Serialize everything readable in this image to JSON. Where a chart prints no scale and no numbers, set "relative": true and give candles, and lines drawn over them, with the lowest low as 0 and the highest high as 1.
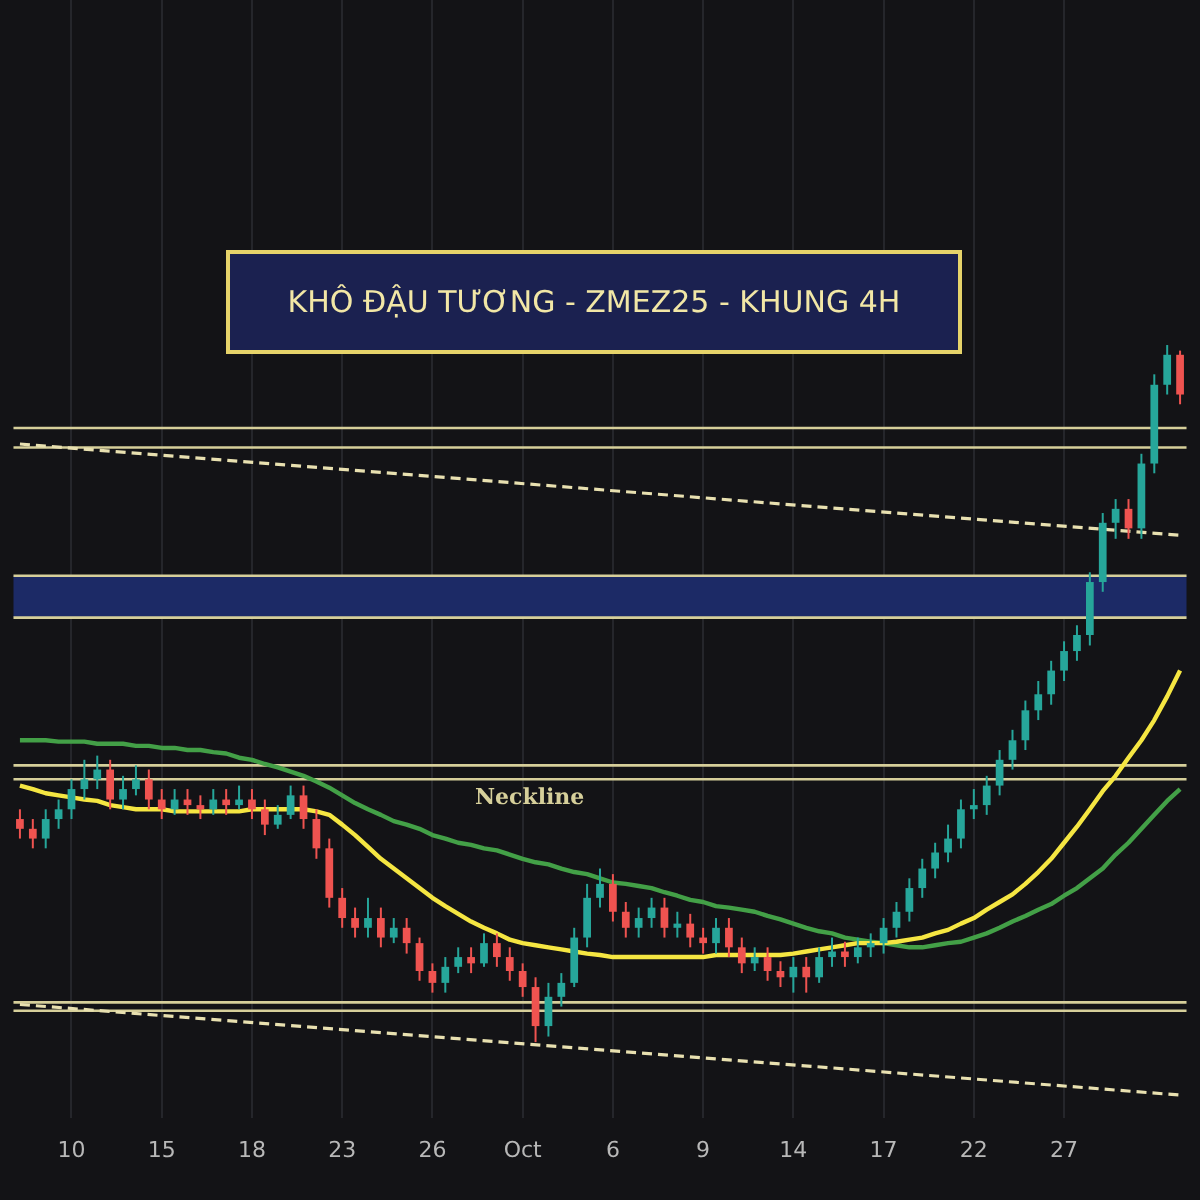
{
  "chart_data": {
    "type": "candlestick",
    "title": "KHÔ ĐẬU TƯƠNG - ZMEZ25 - KHUNG 4H",
    "relative": true,
    "legend": false,
    "grid": "x",
    "tick_labels": "x",
    "categories": [
      null,
      null,
      null,
      null,
      "10",
      null,
      null,
      null,
      null,
      null,
      null,
      "15",
      null,
      null,
      null,
      null,
      null,
      null,
      "18",
      null,
      null,
      null,
      null,
      null,
      null,
      "23",
      null,
      null,
      null,
      null,
      null,
      null,
      "26",
      null,
      null,
      null,
      null,
      null,
      null,
      "Oct",
      null,
      null,
      null,
      null,
      null,
      null,
      "6",
      null,
      null,
      null,
      null,
      null,
      null,
      "9",
      null,
      null,
      null,
      null,
      null,
      null,
      "14",
      null,
      null,
      null,
      null,
      null,
      null,
      "17",
      null,
      null,
      null,
      null,
      null,
      null,
      "22",
      null,
      null,
      null,
      null,
      null,
      null,
      "27",
      null,
      null,
      null,
      null,
      null,
      null,
      null,
      null,
      null
    ],
    "ohlc": [
      [
        0.32,
        0.334,
        0.292,
        0.306
      ],
      [
        0.306,
        0.32,
        0.278,
        0.292
      ],
      [
        0.292,
        0.334,
        0.278,
        0.32
      ],
      [
        0.32,
        0.348,
        0.306,
        0.334
      ],
      [
        0.334,
        0.377,
        0.32,
        0.363
      ],
      [
        0.363,
        0.405,
        0.348,
        0.377
      ],
      [
        0.377,
        0.411,
        0.363,
        0.391
      ],
      [
        0.391,
        0.405,
        0.334,
        0.348
      ],
      [
        0.348,
        0.382,
        0.334,
        0.363
      ],
      [
        0.363,
        0.397,
        0.354,
        0.377
      ],
      [
        0.377,
        0.391,
        0.334,
        0.348
      ],
      [
        0.348,
        0.363,
        0.32,
        0.334
      ],
      [
        0.334,
        0.363,
        0.326,
        0.348
      ],
      [
        0.348,
        0.363,
        0.326,
        0.34
      ],
      [
        0.34,
        0.354,
        0.32,
        0.334
      ],
      [
        0.334,
        0.363,
        0.326,
        0.348
      ],
      [
        0.348,
        0.363,
        0.326,
        0.34
      ],
      [
        0.34,
        0.368,
        0.334,
        0.348
      ],
      [
        0.348,
        0.363,
        0.32,
        0.334
      ],
      [
        0.334,
        0.348,
        0.297,
        0.312
      ],
      [
        0.312,
        0.34,
        0.306,
        0.326
      ],
      [
        0.326,
        0.368,
        0.32,
        0.354
      ],
      [
        0.354,
        0.368,
        0.306,
        0.32
      ],
      [
        0.32,
        0.334,
        0.263,
        0.278
      ],
      [
        0.278,
        0.292,
        0.193,
        0.207
      ],
      [
        0.207,
        0.221,
        0.164,
        0.178
      ],
      [
        0.178,
        0.193,
        0.15,
        0.164
      ],
      [
        0.164,
        0.207,
        0.15,
        0.178
      ],
      [
        0.178,
        0.193,
        0.136,
        0.15
      ],
      [
        0.15,
        0.178,
        0.142,
        0.164
      ],
      [
        0.164,
        0.178,
        0.127,
        0.142
      ],
      [
        0.142,
        0.15,
        0.088,
        0.102
      ],
      [
        0.102,
        0.113,
        0.071,
        0.085
      ],
      [
        0.085,
        0.122,
        0.071,
        0.108
      ],
      [
        0.108,
        0.136,
        0.099,
        0.122
      ],
      [
        0.122,
        0.136,
        0.099,
        0.113
      ],
      [
        0.113,
        0.156,
        0.108,
        0.142
      ],
      [
        0.142,
        0.156,
        0.108,
        0.122
      ],
      [
        0.122,
        0.136,
        0.088,
        0.102
      ],
      [
        0.102,
        0.113,
        0.065,
        0.079
      ],
      [
        0.079,
        0.093,
        0,
        0.023
      ],
      [
        0.023,
        0.085,
        0.008,
        0.065
      ],
      [
        0.065,
        0.099,
        0.051,
        0.085
      ],
      [
        0.085,
        0.164,
        0.079,
        0.15
      ],
      [
        0.15,
        0.227,
        0.136,
        0.207
      ],
      [
        0.207,
        0.249,
        0.193,
        0.227
      ],
      [
        0.227,
        0.241,
        0.173,
        0.187
      ],
      [
        0.187,
        0.201,
        0.15,
        0.164
      ],
      [
        0.164,
        0.193,
        0.15,
        0.178
      ],
      [
        0.178,
        0.207,
        0.164,
        0.193
      ],
      [
        0.193,
        0.207,
        0.15,
        0.164
      ],
      [
        0.164,
        0.187,
        0.15,
        0.17
      ],
      [
        0.17,
        0.184,
        0.136,
        0.15
      ],
      [
        0.15,
        0.164,
        0.127,
        0.142
      ],
      [
        0.142,
        0.178,
        0.127,
        0.164
      ],
      [
        0.164,
        0.178,
        0.122,
        0.136
      ],
      [
        0.136,
        0.15,
        0.099,
        0.113
      ],
      [
        0.113,
        0.136,
        0.102,
        0.122
      ],
      [
        0.122,
        0.136,
        0.088,
        0.102
      ],
      [
        0.102,
        0.116,
        0.079,
        0.093
      ],
      [
        0.093,
        0.122,
        0.071,
        0.108
      ],
      [
        0.108,
        0.122,
        0.071,
        0.093
      ],
      [
        0.093,
        0.136,
        0.085,
        0.122
      ],
      [
        0.122,
        0.15,
        0.108,
        0.13
      ],
      [
        0.13,
        0.144,
        0.108,
        0.122
      ],
      [
        0.122,
        0.15,
        0.113,
        0.136
      ],
      [
        0.136,
        0.156,
        0.122,
        0.142
      ],
      [
        0.142,
        0.178,
        0.127,
        0.164
      ],
      [
        0.164,
        0.201,
        0.15,
        0.187
      ],
      [
        0.187,
        0.235,
        0.173,
        0.221
      ],
      [
        0.221,
        0.263,
        0.207,
        0.249
      ],
      [
        0.249,
        0.286,
        0.235,
        0.272
      ],
      [
        0.272,
        0.312,
        0.258,
        0.292
      ],
      [
        0.292,
        0.348,
        0.278,
        0.334
      ],
      [
        0.334,
        0.363,
        0.32,
        0.34
      ],
      [
        0.34,
        0.382,
        0.326,
        0.368
      ],
      [
        0.368,
        0.419,
        0.354,
        0.405
      ],
      [
        0.405,
        0.448,
        0.391,
        0.433
      ],
      [
        0.433,
        0.49,
        0.419,
        0.476
      ],
      [
        0.476,
        0.518,
        0.462,
        0.499
      ],
      [
        0.499,
        0.547,
        0.484,
        0.533
      ],
      [
        0.533,
        0.575,
        0.518,
        0.561
      ],
      [
        0.561,
        0.598,
        0.547,
        0.584
      ],
      [
        0.584,
        0.674,
        0.569,
        0.66
      ],
      [
        0.66,
        0.759,
        0.646,
        0.745
      ],
      [
        0.745,
        0.779,
        0.722,
        0.765
      ],
      [
        0.765,
        0.779,
        0.722,
        0.737
      ],
      [
        0.737,
        0.844,
        0.722,
        0.83
      ],
      [
        0.83,
        0.958,
        0.816,
        0.943
      ],
      [
        0.943,
        1,
        0.929,
        0.986
      ],
      [
        0.986,
        0.992,
        0.915,
        0.929
      ]
    ],
    "colors": [
      "#ef5350",
      "#ef5350",
      "#26a69a",
      "#26a69a",
      "#26a69a",
      "#26a69a",
      "#26a69a",
      "#ef5350",
      "#26a69a",
      "#26a69a",
      "#ef5350",
      "#ef5350",
      "#26a69a",
      "#ef5350",
      "#ef5350",
      "#26a69a",
      "#ef5350",
      "#26a69a",
      "#ef5350",
      "#ef5350",
      "#26a69a",
      "#26a69a",
      "#ef5350",
      "#ef5350",
      "#ef5350",
      "#ef5350",
      "#ef5350",
      "#26a69a",
      "#ef5350",
      "#26a69a",
      "#ef5350",
      "#ef5350",
      "#ef5350",
      "#26a69a",
      "#26a69a",
      "#ef5350",
      "#26a69a",
      "#ef5350",
      "#ef5350",
      "#ef5350",
      "#ef5350",
      "#26a69a",
      "#26a69a",
      "#26a69a",
      "#26a69a",
      "#26a69a",
      "#ef5350",
      "#ef5350",
      "#26a69a",
      "#26a69a",
      "#ef5350",
      "#26a69a",
      "#ef5350",
      "#ef5350",
      "#26a69a",
      "#ef5350",
      "#ef5350",
      "#26a69a",
      "#ef5350",
      "#ef5350",
      "#26a69a",
      "#ef5350",
      "#26a69a",
      "#26a69a",
      "#ef5350",
      "#26a69a",
      "#26a69a",
      "#26a69a",
      "#26a69a",
      "#26a69a",
      "#26a69a",
      "#26a69a",
      "#26a69a",
      "#26a69a",
      "#26a69a",
      "#26a69a",
      "#26a69a",
      "#26a69a",
      "#26a69a",
      "#26a69a",
      "#26a69a",
      "#26a69a",
      "#26a69a",
      "#26a69a",
      "#26a69a",
      "#26a69a",
      "#ef5350",
      "#26a69a",
      "#26a69a",
      "#26a69a",
      "#ef5350"
    ],
    "series": [
      {
        "type": "line",
        "color": "#f5e642",
        "values": [
          0.368,
          0.363,
          0.357,
          0.354,
          0.351,
          0.348,
          0.346,
          0.34,
          0.337,
          0.334,
          0.334,
          0.334,
          0.331,
          0.331,
          0.331,
          0.331,
          0.331,
          0.331,
          0.334,
          0.334,
          0.334,
          0.334,
          0.334,
          0.331,
          0.326,
          0.312,
          0.297,
          0.28,
          0.263,
          0.249,
          0.235,
          0.221,
          0.207,
          0.195,
          0.184,
          0.173,
          0.164,
          0.156,
          0.147,
          0.142,
          0.139,
          0.136,
          0.133,
          0.13,
          0.127,
          0.125,
          0.122,
          0.122,
          0.122,
          0.122,
          0.122,
          0.122,
          0.122,
          0.122,
          0.125,
          0.125,
          0.125,
          0.125,
          0.125,
          0.125,
          0.127,
          0.13,
          0.133,
          0.136,
          0.139,
          0.142,
          0.142,
          0.142,
          0.144,
          0.147,
          0.15,
          0.156,
          0.161,
          0.17,
          0.178,
          0.19,
          0.201,
          0.212,
          0.227,
          0.244,
          0.263,
          0.286,
          0.309,
          0.334,
          0.36,
          0.382,
          0.408,
          0.433,
          0.462,
          0.496,
          0.533
        ]
      },
      {
        "type": "line",
        "color": "#43a047",
        "values": [
          0.433,
          0.433,
          0.433,
          0.431,
          0.431,
          0.431,
          0.428,
          0.428,
          0.428,
          0.425,
          0.425,
          0.422,
          0.422,
          0.419,
          0.419,
          0.416,
          0.414,
          0.408,
          0.405,
          0.399,
          0.394,
          0.388,
          0.382,
          0.374,
          0.365,
          0.354,
          0.343,
          0.334,
          0.326,
          0.317,
          0.312,
          0.306,
          0.297,
          0.292,
          0.286,
          0.283,
          0.278,
          0.275,
          0.269,
          0.263,
          0.258,
          0.255,
          0.249,
          0.244,
          0.241,
          0.235,
          0.229,
          0.227,
          0.224,
          0.221,
          0.215,
          0.21,
          0.204,
          0.201,
          0.195,
          0.193,
          0.19,
          0.187,
          0.181,
          0.176,
          0.17,
          0.164,
          0.159,
          0.156,
          0.15,
          0.147,
          0.144,
          0.142,
          0.139,
          0.136,
          0.136,
          0.139,
          0.142,
          0.144,
          0.15,
          0.156,
          0.164,
          0.173,
          0.181,
          0.19,
          0.198,
          0.21,
          0.221,
          0.235,
          0.249,
          0.269,
          0.286,
          0.306,
          0.326,
          0.346,
          0.363
        ]
      },
      {
        "type": "line",
        "color": "#e8e0b0",
        "line_style": "dashed",
        "values": [
          0.858,
          null,
          null,
          null,
          null,
          null,
          null,
          null,
          null,
          null,
          null,
          null,
          null,
          null,
          null,
          null,
          null,
          null,
          null,
          null,
          null,
          null,
          null,
          null,
          null,
          null,
          null,
          null,
          null,
          null,
          null,
          null,
          null,
          null,
          null,
          null,
          null,
          null,
          null,
          null,
          null,
          null,
          null,
          null,
          null,
          null,
          null,
          null,
          null,
          null,
          null,
          null,
          null,
          null,
          null,
          null,
          null,
          null,
          null,
          null,
          null,
          null,
          null,
          null,
          null,
          null,
          null,
          null,
          null,
          null,
          null,
          null,
          null,
          null,
          null,
          null,
          null,
          null,
          null,
          null,
          null,
          null,
          null,
          null,
          null,
          null,
          null,
          null,
          null,
          null,
          0.727
        ]
      },
      {
        "type": "line",
        "color": "#e8e0b0",
        "line_style": "dashed",
        "values": [
          0.054,
          null,
          null,
          null,
          null,
          null,
          null,
          null,
          null,
          null,
          null,
          null,
          null,
          null,
          null,
          null,
          null,
          null,
          null,
          null,
          null,
          null,
          null,
          null,
          null,
          null,
          null,
          null,
          null,
          null,
          null,
          null,
          null,
          null,
          null,
          null,
          null,
          null,
          null,
          null,
          null,
          null,
          null,
          null,
          null,
          null,
          null,
          null,
          null,
          null,
          null,
          null,
          null,
          null,
          null,
          null,
          null,
          null,
          null,
          null,
          null,
          null,
          null,
          null,
          null,
          null,
          null,
          null,
          null,
          null,
          null,
          null,
          null,
          null,
          null,
          null,
          null,
          null,
          null,
          null,
          null,
          null,
          null,
          null,
          null,
          null,
          null,
          null,
          null,
          null,
          -0.076
        ]
      }
    ],
    "bands": [
      {
        "axis": "y",
        "from": 0.609,
        "to": 0.669,
        "color": "#1c2a66"
      }
    ],
    "ref_lines": [
      {
        "axis": "y",
        "value": 0.881,
        "color": "#d6cf9a"
      },
      {
        "axis": "y",
        "value": 0.853,
        "color": "#d6cf9a"
      },
      {
        "axis": "y",
        "value": 0.669,
        "color": "#d6cf9a"
      },
      {
        "axis": "y",
        "value": 0.609,
        "color": "#d6cf9a"
      },
      {
        "axis": "y",
        "value": 0.397,
        "color": "#d6cf9a"
      },
      {
        "axis": "y",
        "value": 0.377,
        "color": "#d6cf9a",
        "label": "Neckline"
      },
      {
        "axis": "y",
        "value": 0.057,
        "color": "#d6cf9a"
      },
      {
        "axis": "y",
        "value": 0.045,
        "color": "#d6cf9a"
      }
    ]
  }
}
